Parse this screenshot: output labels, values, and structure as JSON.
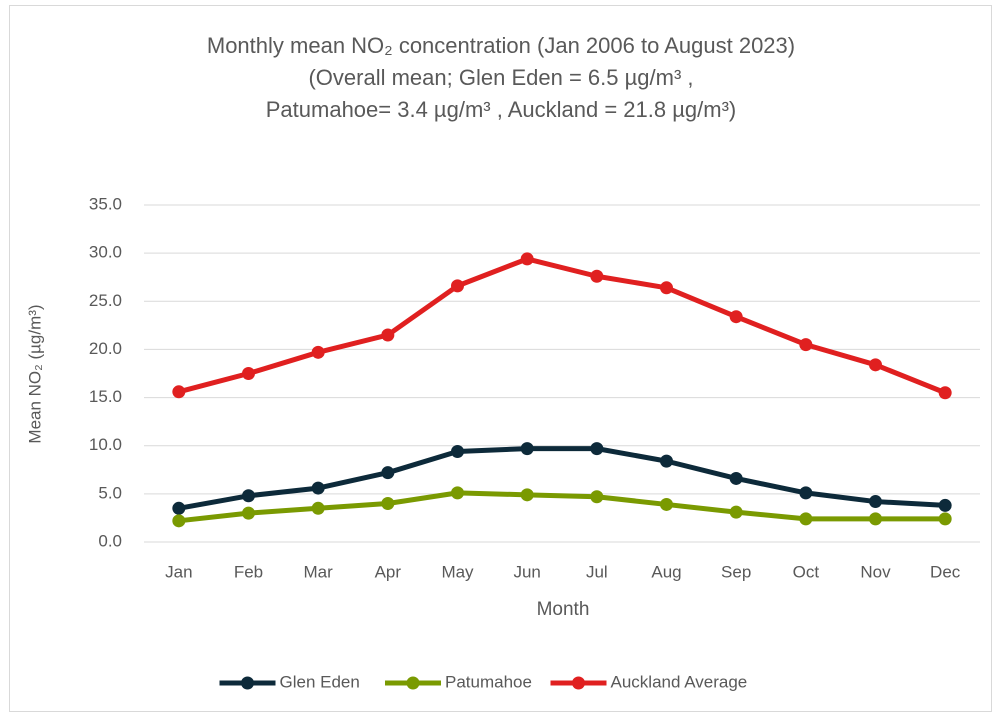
{
  "chart_data": {
    "type": "line",
    "title": [
      "Monthly mean NO₂ concentration (Jan 2006 to August 2023)",
      "(Overall mean; Glen Eden = 6.5 µg/m³ ,",
      "Patumahoe= 3.4 µg/m³ , Auckland = 21.8 µg/m³)"
    ],
    "x_label": "Month",
    "y_label": "Mean NO₂ (µg/m³)",
    "categories": [
      "Jan",
      "Feb",
      "Mar",
      "Apr",
      "May",
      "Jun",
      "Jul",
      "Aug",
      "Sep",
      "Oct",
      "Nov",
      "Dec"
    ],
    "series": [
      {
        "name": "Glen Eden",
        "color": "#0d2a3a",
        "values": [
          3.5,
          4.8,
          5.6,
          7.2,
          9.4,
          9.7,
          9.7,
          8.4,
          6.6,
          5.1,
          4.2,
          3.8
        ]
      },
      {
        "name": "Patumahoe",
        "color": "#7a9a01",
        "values": [
          2.2,
          3.0,
          3.5,
          4.0,
          5.1,
          4.9,
          4.7,
          3.9,
          3.1,
          2.4,
          2.4,
          2.4
        ]
      },
      {
        "name": "Auckland Average",
        "color": "#e02020",
        "values": [
          15.6,
          17.5,
          19.7,
          21.5,
          26.6,
          29.4,
          27.6,
          26.4,
          23.4,
          20.5,
          18.4,
          15.5
        ]
      }
    ],
    "ylim": [
      0,
      35
    ],
    "yticks": [
      {
        "value": 0,
        "label": "0.0"
      },
      {
        "value": 5,
        "label": "5.0"
      },
      {
        "value": 10,
        "label": "10.0"
      },
      {
        "value": 15,
        "label": "15.0"
      },
      {
        "value": 20,
        "label": "20.0"
      },
      {
        "value": 25,
        "label": "25.0"
      },
      {
        "value": 30,
        "label": "30.0"
      },
      {
        "value": 35,
        "label": "35.0"
      }
    ],
    "grid": true,
    "legend": "bottom"
  }
}
